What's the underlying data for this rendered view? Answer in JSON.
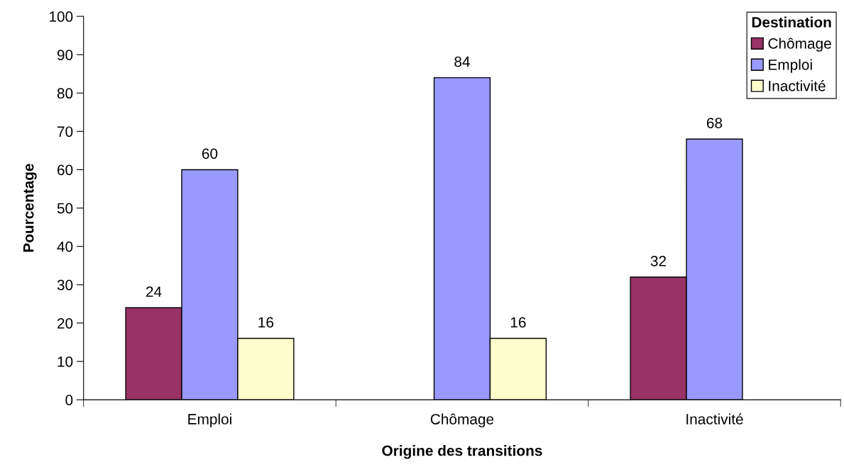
{
  "chart_data": {
    "type": "bar",
    "xlabel": "Origine des transitions",
    "ylabel": "Pourcentage",
    "legend_title": "Destination",
    "categories": [
      "Emploi",
      "Chômage",
      "Inactivité"
    ],
    "series": [
      {
        "name": "Chômage",
        "color": "#993366",
        "values": [
          24,
          null,
          32
        ]
      },
      {
        "name": "Emploi",
        "color": "#9999ff",
        "values": [
          60,
          84,
          68
        ]
      },
      {
        "name": "Inactivité",
        "color": "#ffffcc",
        "values": [
          16,
          16,
          null
        ]
      }
    ],
    "ylim": [
      0,
      100
    ],
    "yticks": [
      0,
      10,
      20,
      30,
      40,
      50,
      60,
      70,
      80,
      90,
      100
    ],
    "data_labels": true,
    "legend": "top right",
    "grid": false
  }
}
